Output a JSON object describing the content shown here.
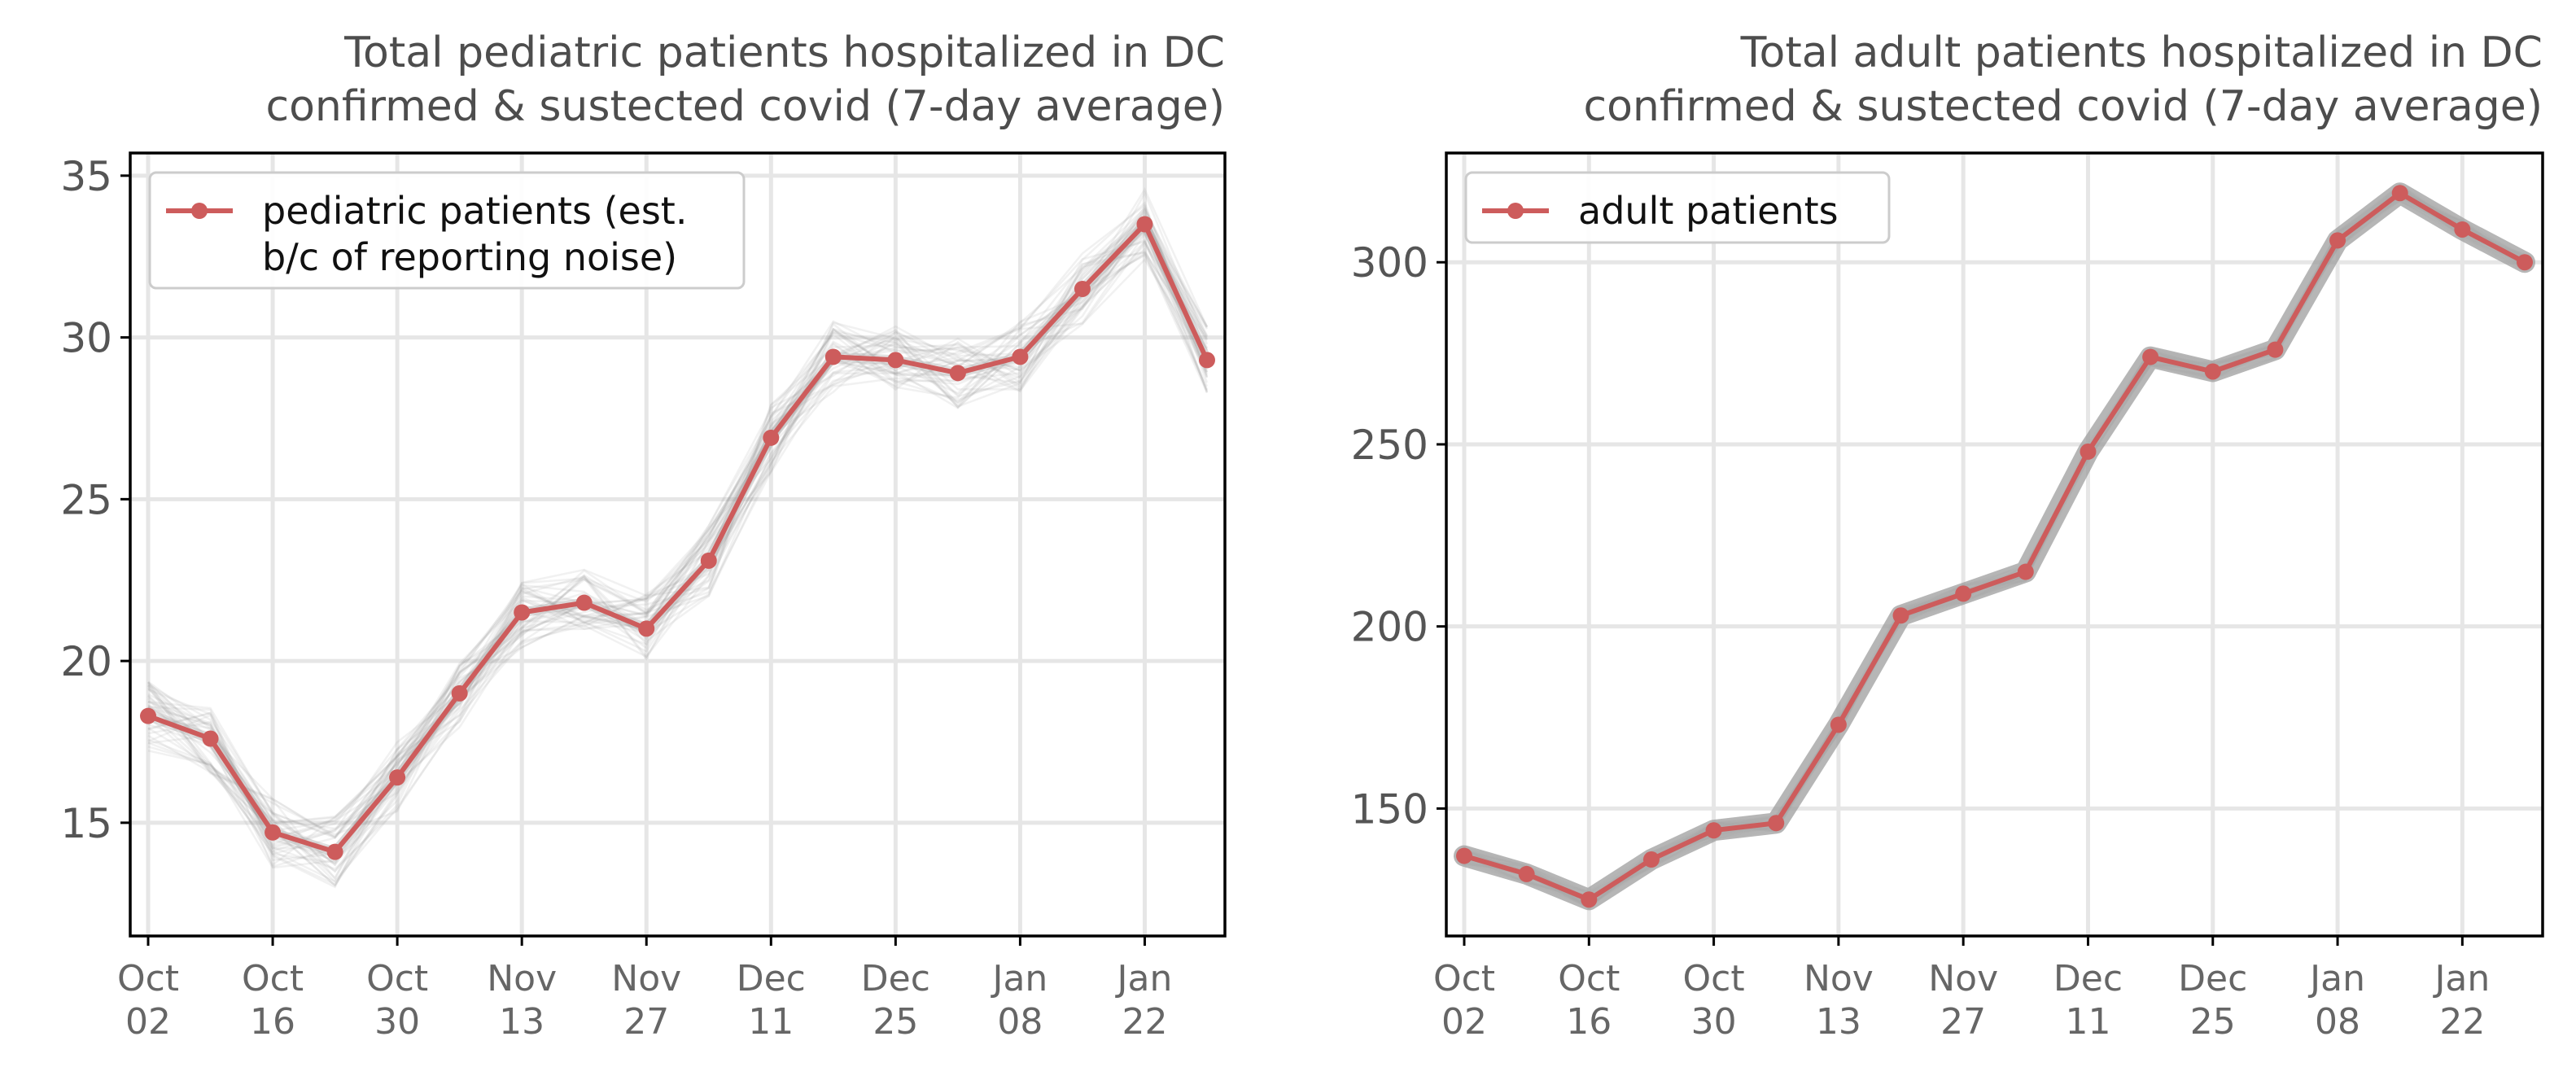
{
  "chart_data": [
    {
      "type": "line",
      "title": [
        "Total pediatric patients hospitalized in DC",
        "confirmed & sustected covid (7-day average)"
      ],
      "x": [
        "2022-10-02",
        "2022-10-09",
        "2022-10-16",
        "2022-10-23",
        "2022-10-30",
        "2022-11-06",
        "2022-11-13",
        "2022-11-20",
        "2022-11-27",
        "2022-12-04",
        "2022-12-11",
        "2022-12-18",
        "2022-12-25",
        "2023-01-01",
        "2023-01-08",
        "2023-01-15",
        "2023-01-22",
        "2023-01-29"
      ],
      "x_tick_labels": [
        [
          "Oct",
          "02"
        ],
        [
          "Oct",
          "16"
        ],
        [
          "Oct",
          "30"
        ],
        [
          "Nov",
          "13"
        ],
        [
          "Nov",
          "27"
        ],
        [
          "Dec",
          "11"
        ],
        [
          "Dec",
          "25"
        ],
        [
          "Jan",
          "08"
        ],
        [
          "Jan",
          "22"
        ]
      ],
      "y_ticks": [
        15,
        20,
        25,
        30,
        35
      ],
      "ylim": [
        11.5,
        35.7
      ],
      "series": [
        {
          "name": "pediatric patients (est. b/c of reporting noise)",
          "legend_lines": [
            "pediatric patients (est.",
            "b/c of reporting noise)"
          ],
          "color": "#cd5c5c",
          "values": [
            18.3,
            17.6,
            14.7,
            14.1,
            16.4,
            19.0,
            21.5,
            21.8,
            21.0,
            23.1,
            26.9,
            29.4,
            29.3,
            28.9,
            29.4,
            31.5,
            33.5,
            29.3
          ]
        }
      ],
      "uncertainty_band": {
        "color": "#808080",
        "spread": 1.1
      },
      "legend_position": "upper left",
      "grid": true
    },
    {
      "type": "line",
      "title": [
        "Total adult patients hospitalized in DC",
        "confirmed & sustected covid (7-day average)"
      ],
      "x": [
        "2022-10-02",
        "2022-10-09",
        "2022-10-16",
        "2022-10-23",
        "2022-10-30",
        "2022-11-06",
        "2022-11-13",
        "2022-11-20",
        "2022-11-27",
        "2022-12-04",
        "2022-12-11",
        "2022-12-18",
        "2022-12-25",
        "2023-01-01",
        "2023-01-08",
        "2023-01-15",
        "2023-01-22",
        "2023-01-29"
      ],
      "x_tick_labels": [
        [
          "Oct",
          "02"
        ],
        [
          "Oct",
          "16"
        ],
        [
          "Oct",
          "30"
        ],
        [
          "Nov",
          "13"
        ],
        [
          "Nov",
          "27"
        ],
        [
          "Dec",
          "11"
        ],
        [
          "Dec",
          "25"
        ],
        [
          "Jan",
          "08"
        ],
        [
          "Jan",
          "22"
        ]
      ],
      "y_ticks": [
        150,
        200,
        250,
        300
      ],
      "ylim": [
        115,
        330
      ],
      "series": [
        {
          "name": "adult patients",
          "legend_lines": [
            "adult patients"
          ],
          "color": "#cd5c5c",
          "values": [
            137,
            132,
            125,
            136,
            144,
            146,
            173,
            203,
            209,
            215,
            248,
            274,
            270,
            276,
            306,
            319,
            309,
            300
          ]
        }
      ],
      "uncertainty_band": {
        "color": "#808080",
        "spread": 2.5
      },
      "legend_position": "upper left",
      "grid": true
    }
  ]
}
